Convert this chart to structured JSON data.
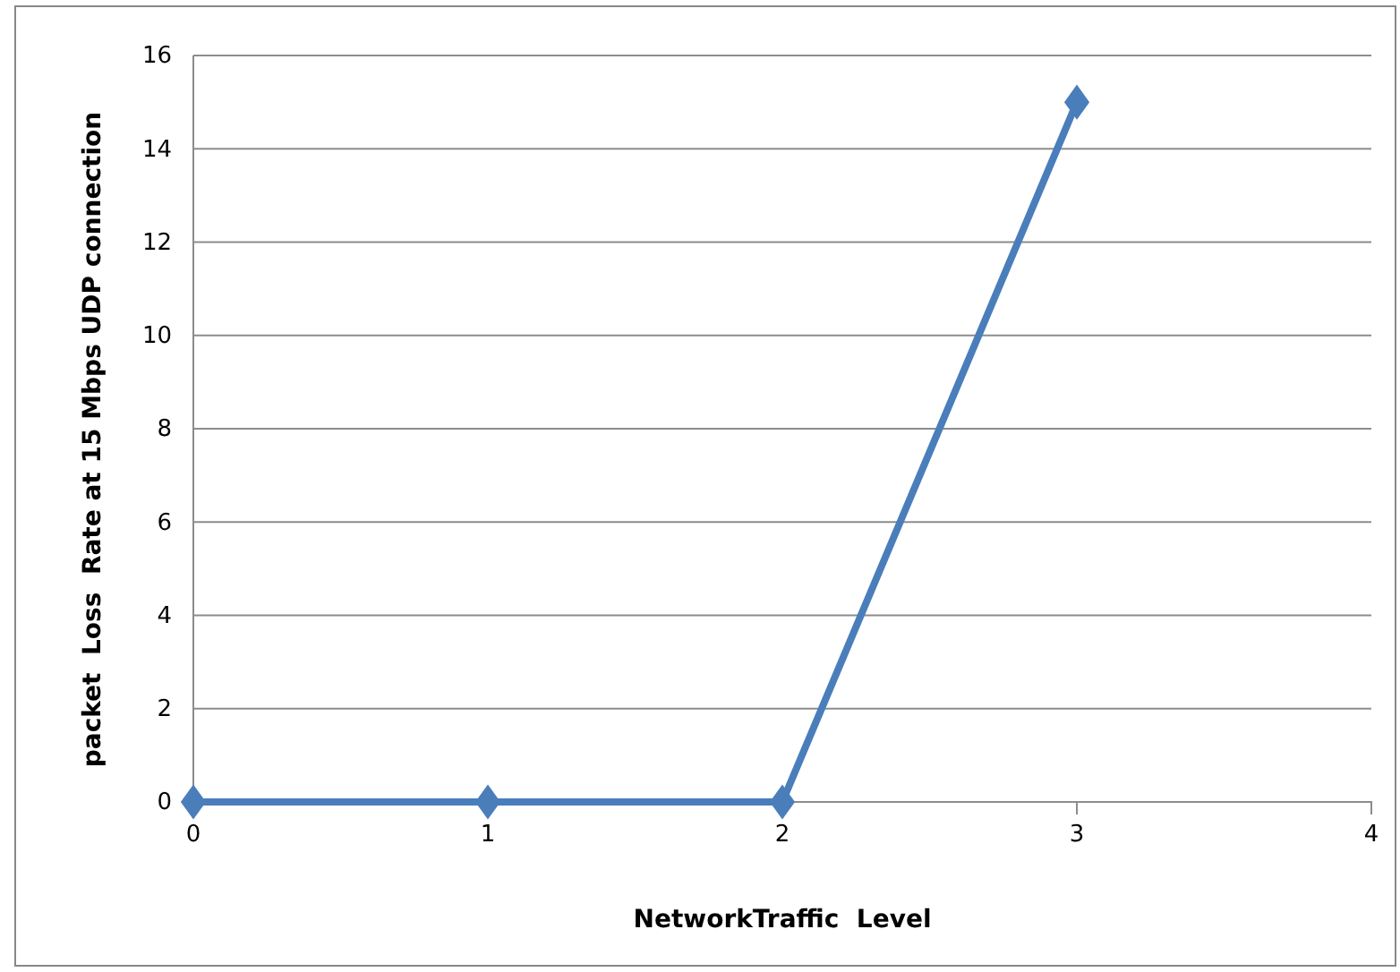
{
  "chart_data": {
    "type": "line",
    "xlabel": "NetworkTraffic  Level",
    "ylabel": "packet  Loss  Rate at 15 Mbps UDP connection",
    "x": [
      0,
      1,
      2,
      3
    ],
    "series": [
      {
        "color": "#4a7ebb",
        "values": [
          0,
          0,
          0,
          15
        ]
      }
    ],
    "xlim": [
      0,
      4
    ],
    "xticks": [
      0,
      1,
      2,
      3,
      4
    ],
    "ylim": [
      0,
      16
    ],
    "yticks": [
      0,
      2,
      4,
      6,
      8,
      10,
      12,
      14,
      16
    ],
    "grid": "y",
    "marker": "diamond",
    "line_style": "solid"
  }
}
